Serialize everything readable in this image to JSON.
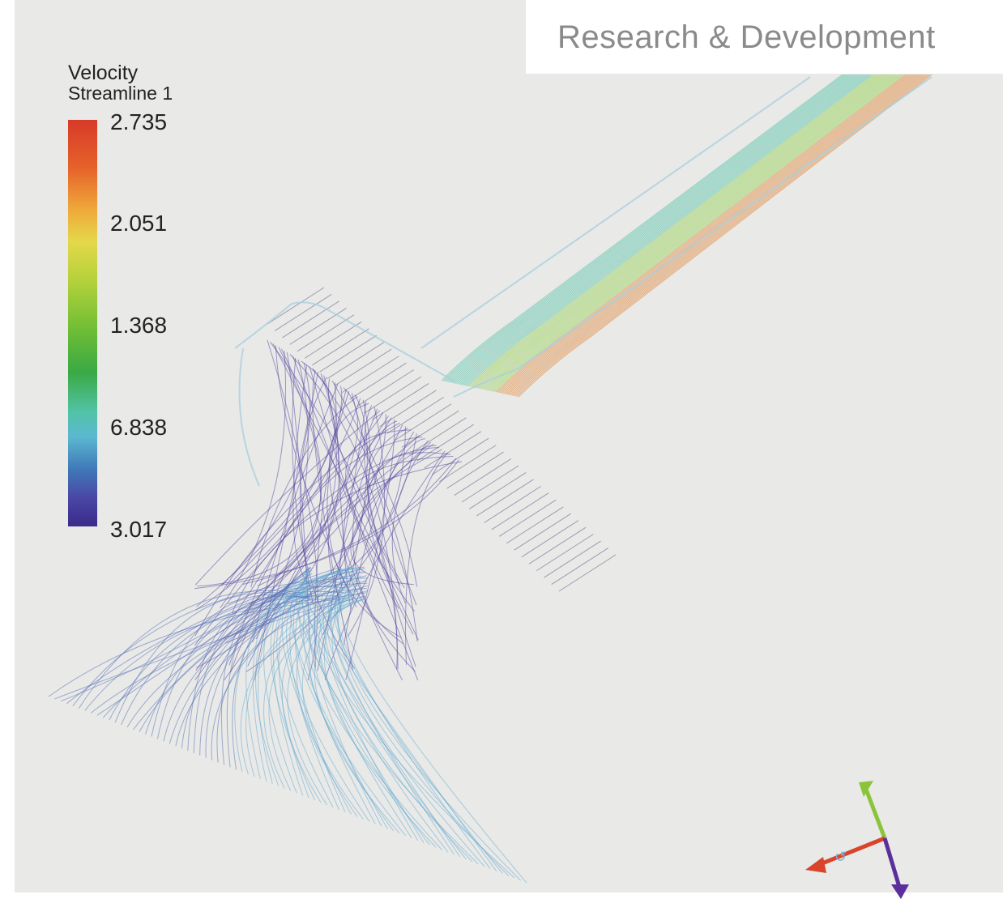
{
  "header": {
    "banner_text": "Research & Development"
  },
  "legend": {
    "title": "Velocity",
    "subtitle": "Streamline 1",
    "ticks": [
      "2.735",
      "2.051",
      "1.368",
      "6.838",
      "3.017"
    ],
    "colors": [
      "#d73a28",
      "#efa83a",
      "#e4d84a",
      "#6dbd35",
      "#3aa944",
      "#5bb8d0",
      "#3f78b8",
      "#3b2a8a"
    ]
  },
  "scene": {
    "background_color": "#e9e9e7",
    "streamline_colors": {
      "jet_fast": "#e0863a",
      "jet_mid": "#8fcf4a",
      "jet_slow": "#52c3a7",
      "swirl": "#4b3f9e",
      "plume": "#5ea8d2"
    },
    "axis_triad": {
      "x_color": "#d8452c",
      "y_color": "#8bc43a",
      "z_color": "#5b2f9b",
      "center_icon": "rotation-arrow-icon"
    }
  }
}
